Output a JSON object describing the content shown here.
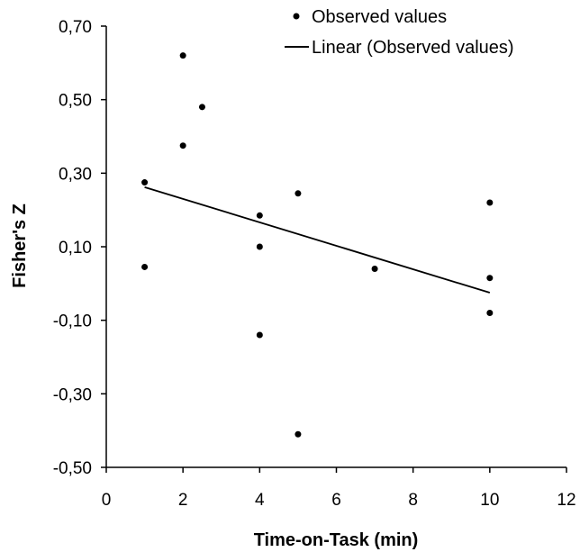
{
  "chart_data": {
    "type": "scatter",
    "xlabel": "Time-on-Task (min)",
    "ylabel": "Fisher's Z",
    "xlim": [
      0,
      12
    ],
    "ylim": [
      -0.5,
      0.7
    ],
    "x_ticks": [
      0,
      2,
      4,
      6,
      8,
      10,
      12
    ],
    "x_tick_labels": [
      "0",
      "2",
      "4",
      "6",
      "8",
      "10",
      "12"
    ],
    "y_ticks": [
      0.7,
      0.5,
      0.3,
      0.1,
      -0.1,
      -0.3,
      -0.5
    ],
    "y_tick_labels": [
      "0,70",
      "0,50",
      "0,30",
      "0,10",
      "-0,10",
      "-0,30",
      "-0,50"
    ],
    "grid": false,
    "legend_position": "top-right",
    "series": [
      {
        "name": "Observed values",
        "type": "scatter",
        "color": "#000000",
        "points": [
          {
            "x": 1,
            "y": 0.275
          },
          {
            "x": 1,
            "y": 0.045
          },
          {
            "x": 2,
            "y": 0.62
          },
          {
            "x": 2,
            "y": 0.375
          },
          {
            "x": 2.5,
            "y": 0.48
          },
          {
            "x": 4,
            "y": 0.185
          },
          {
            "x": 4,
            "y": 0.1
          },
          {
            "x": 4,
            "y": -0.14
          },
          {
            "x": 5,
            "y": 0.245
          },
          {
            "x": 5,
            "y": -0.41
          },
          {
            "x": 7,
            "y": 0.04
          },
          {
            "x": 10,
            "y": 0.22
          },
          {
            "x": 10,
            "y": 0.015
          },
          {
            "x": 10,
            "y": -0.08
          }
        ]
      },
      {
        "name": "Linear (Observed values)",
        "type": "line",
        "color": "#000000",
        "points": [
          {
            "x": 1,
            "y": 0.262
          },
          {
            "x": 10,
            "y": -0.025
          }
        ]
      }
    ]
  }
}
